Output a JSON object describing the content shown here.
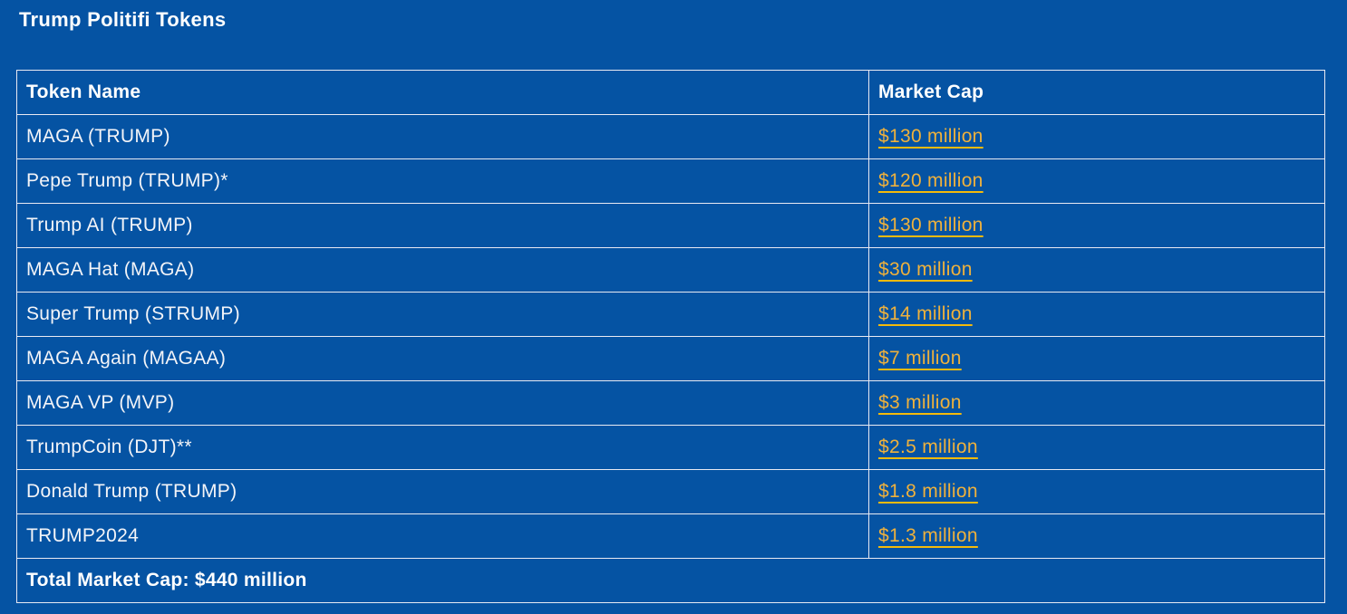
{
  "page": {
    "title": "Trump Politifi Tokens"
  },
  "colors": {
    "background": "#0553A3",
    "border": "#E9EAF3",
    "heading_text": "#FFFFFF",
    "body_text": "#F3F4F8",
    "link_gold": "#EFB13C",
    "link_underline": "#F4BA0B"
  },
  "table": {
    "headers": [
      "Token Name",
      "Market Cap"
    ],
    "rows": [
      {
        "name": "MAGA (TRUMP)",
        "cap": "$130 million"
      },
      {
        "name": "Pepe Trump (TRUMP)*",
        "cap": "$120 million"
      },
      {
        "name": "Trump AI (TRUMP)",
        "cap": "$130 million"
      },
      {
        "name": "MAGA Hat (MAGA)",
        "cap": "$30 million"
      },
      {
        "name": "Super Trump (STRUMP)",
        "cap": "$14 million"
      },
      {
        "name": "MAGA Again (MAGAA)",
        "cap": "$7 million"
      },
      {
        "name": "MAGA VP (MVP)",
        "cap": "$3 million"
      },
      {
        "name": "TrumpCoin (DJT)**",
        "cap": "$2.5 million"
      },
      {
        "name": "Donald Trump (TRUMP)",
        "cap": "$1.8 million"
      },
      {
        "name": "TRUMP2024",
        "cap": "$1.3 million"
      }
    ],
    "footer": "Total Market Cap: $440 million"
  }
}
